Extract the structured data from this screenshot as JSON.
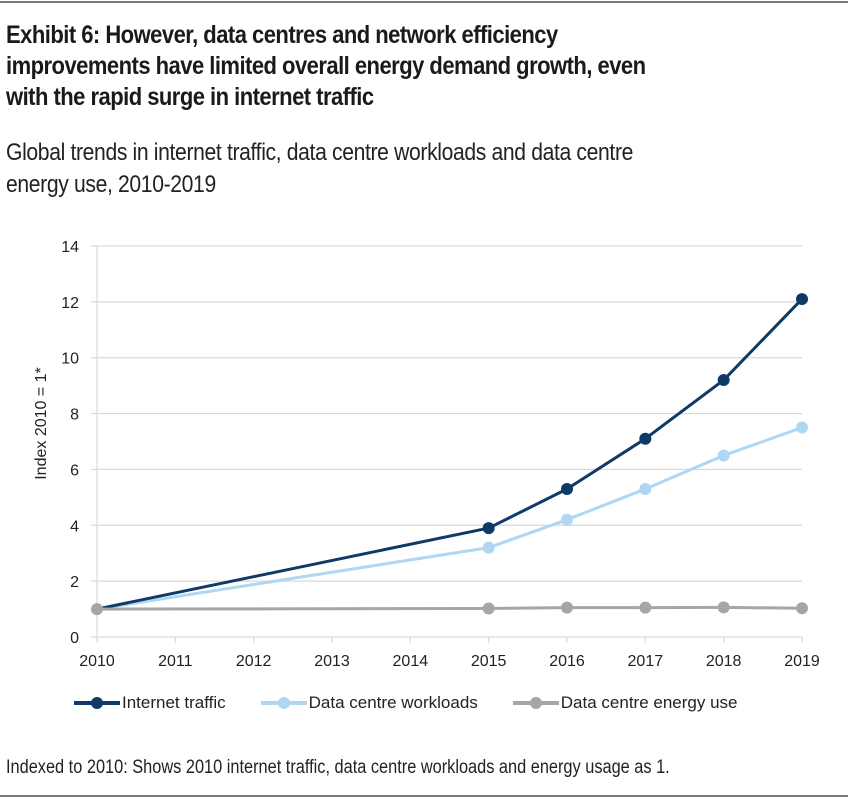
{
  "header": {
    "title": "Exhibit 6: However, data centres and network efficiency improvements have limited overall energy demand growth, even with the rapid surge in internet traffic",
    "title_lines": [
      "Exhibit 6: However, data centres and network efficiency",
      "improvements have limited overall energy demand growth, even",
      "with the rapid surge in internet traffic"
    ],
    "subtitle_lines": [
      "Global trends in internet traffic, data centre workloads and data centre",
      "energy use, 2010-2019"
    ]
  },
  "footnote": "Indexed to 2010: Shows 2010 internet traffic, data centre workloads and energy usage as 1.",
  "chart_data": {
    "type": "line",
    "title": "Global trends in internet traffic, data centre workloads and data centre energy use, 2010-2019",
    "xlabel": "",
    "ylabel": "Index 2010 = 1*",
    "x": [
      2010,
      2011,
      2012,
      2013,
      2014,
      2015,
      2016,
      2017,
      2018,
      2019
    ],
    "x_tick_labels": [
      "2010",
      "2011",
      "2012",
      "2013",
      "2014",
      "2015",
      "2016",
      "2017",
      "2018",
      "2019"
    ],
    "ylim": [
      0,
      14
    ],
    "y_ticks": [
      0,
      2,
      4,
      6,
      8,
      10,
      12,
      14
    ],
    "grid": true,
    "legend_position": "bottom",
    "series": [
      {
        "name": "Internet traffic",
        "color": "#0f3a66",
        "points": [
          [
            2010,
            1.0
          ],
          [
            2015,
            3.9
          ],
          [
            2016,
            5.3
          ],
          [
            2017,
            7.1
          ],
          [
            2018,
            9.2
          ],
          [
            2019,
            12.1
          ]
        ]
      },
      {
        "name": "Data centre workloads",
        "color": "#afd6f2",
        "points": [
          [
            2010,
            1.0
          ],
          [
            2015,
            3.2
          ],
          [
            2016,
            4.2
          ],
          [
            2017,
            5.3
          ],
          [
            2018,
            6.5
          ],
          [
            2019,
            7.5
          ]
        ]
      },
      {
        "name": "Data centre energy use",
        "color": "#a6a6a6",
        "points": [
          [
            2010,
            1.0
          ],
          [
            2015,
            1.02
          ],
          [
            2016,
            1.05
          ],
          [
            2017,
            1.05
          ],
          [
            2018,
            1.06
          ],
          [
            2019,
            1.03
          ]
        ]
      }
    ]
  }
}
